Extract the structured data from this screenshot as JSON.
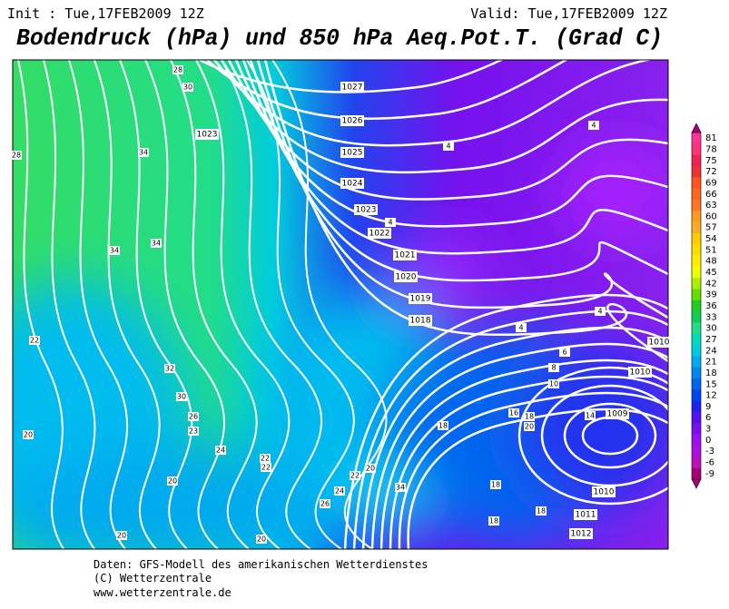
{
  "header": {
    "init": "Init : Tue,17FEB2009 12Z",
    "valid": "Valid: Tue,17FEB2009 12Z",
    "title": "Bodendruck (hPa) und 850 hPa Aeq.Pot.T. (Grad C)"
  },
  "colorbar": {
    "labels": [
      81,
      78,
      75,
      72,
      69,
      66,
      63,
      60,
      57,
      54,
      51,
      48,
      45,
      42,
      39,
      36,
      33,
      30,
      27,
      24,
      21,
      18,
      15,
      12,
      9,
      6,
      3,
      0,
      -3,
      -6,
      -9
    ],
    "colors": [
      "#ff3399",
      "#ff3377",
      "#ee2255",
      "#ee3333",
      "#ff5522",
      "#ff6622",
      "#ff7722",
      "#ff9922",
      "#ffaa22",
      "#ffcc00",
      "#ffdd00",
      "#ffee00",
      "#eeff00",
      "#aaee00",
      "#66dd00",
      "#22cc22",
      "#11cc55",
      "#22dd88",
      "#00ddbb",
      "#00ccdd",
      "#00aaee",
      "#0088ee",
      "#0066ee",
      "#0044ee",
      "#2222ee",
      "#5511ee",
      "#7711ee",
      "#9911ee",
      "#aa11dd",
      "#bb11bb",
      "#aa0077"
    ]
  },
  "isobar_labels": [
    1027,
    1026,
    1025,
    1024,
    1023,
    1022,
    1021,
    1020,
    1019,
    1018,
    1023,
    1010,
    1010,
    1009,
    1010,
    1011,
    1012
  ],
  "theta_labels": [
    28,
    30,
    34,
    28,
    34,
    34,
    22,
    32,
    30,
    26,
    23,
    24,
    20,
    20,
    20,
    20,
    22,
    22,
    22,
    20,
    24,
    26,
    34,
    18,
    16,
    18,
    20,
    18,
    18,
    18,
    14,
    10,
    8,
    6,
    4,
    4,
    4,
    4,
    4
  ],
  "footer": [
    "Daten: GFS-Modell des amerikanischen Wetterdienstes",
    "(C) Wetterzentrale",
    "www.wetterzentrale.de"
  ]
}
